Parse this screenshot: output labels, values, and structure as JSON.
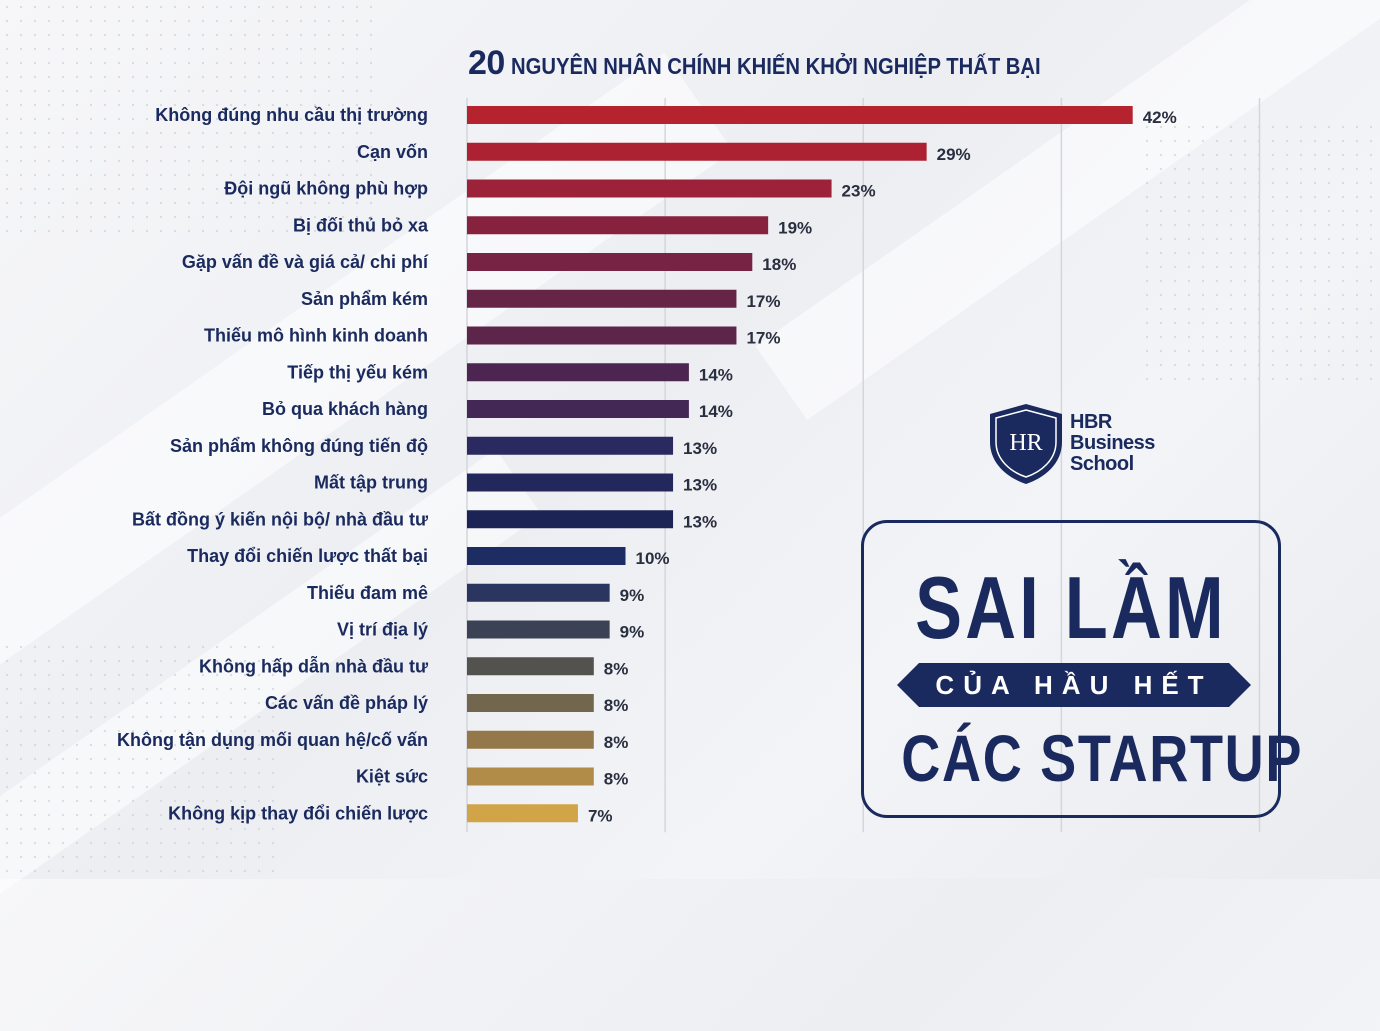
{
  "title": {
    "number": "20",
    "text": "NGUYÊN NHÂN CHÍNH KHIẾN KHỞI NGHIỆP THẤT BẠI"
  },
  "chart_data": {
    "type": "bar",
    "orientation": "horizontal",
    "grid": true,
    "xlim": [
      0,
      50
    ],
    "categories": [
      "Không đúng nhu cầu thị trường",
      "Cạn vốn",
      "Đội ngũ không phù hợp",
      "Bị đối thủ bỏ xa",
      "Gặp vấn đề và giá cả/ chi phí",
      "Sản phẩm kém",
      "Thiếu mô hình kinh doanh",
      "Tiếp thị yếu kém",
      "Bỏ qua khách hàng",
      "Sản phẩm không đúng tiến độ",
      "Mất tập trung",
      "Bất đồng ý kiến nội bộ/ nhà đầu tư",
      "Thay đổi chiến lược thất bại",
      "Thiếu đam mê",
      "Vị trí địa lý",
      "Không hấp dẫn nhà đầu tư",
      "Các vấn đề pháp lý",
      "Không tận dụng mối quan hệ/cố vấn",
      "Kiệt sức",
      "Không kịp thay đổi chiến lược"
    ],
    "values": [
      42,
      29,
      23,
      19,
      18,
      17,
      17,
      14,
      14,
      13,
      13,
      13,
      10,
      9,
      9,
      8,
      8,
      8,
      8,
      7
    ],
    "value_labels": [
      "42%",
      "29%",
      "23%",
      "19%",
      "18%",
      "17%",
      "17%",
      "14%",
      "14%",
      "13%",
      "13%",
      "13%",
      "10%",
      "9%",
      "9%",
      "8%",
      "8%",
      "8%",
      "8%",
      "7%"
    ],
    "bar_colors": [
      "#b5232f",
      "#ad2232",
      "#9b2238",
      "#87223e",
      "#772444",
      "#662447",
      "#5c2549",
      "#4c2650",
      "#432755",
      "#2a2a60",
      "#22285c",
      "#1c2456",
      "#1d2d63",
      "#2a3560",
      "#3c4256",
      "#54524f",
      "#72664f",
      "#95784a",
      "#b18c48",
      "#d0a447"
    ]
  },
  "logo": {
    "monogram": "HR",
    "text_line1": "HBR",
    "text_line2": "Business",
    "text_line3": "School"
  },
  "poster": {
    "line1": "SAI LẦM",
    "line2": "CỦA HẦU HẾT",
    "line3": "CÁC STARTUP"
  },
  "colors": {
    "navy": "#1a2a5e"
  }
}
